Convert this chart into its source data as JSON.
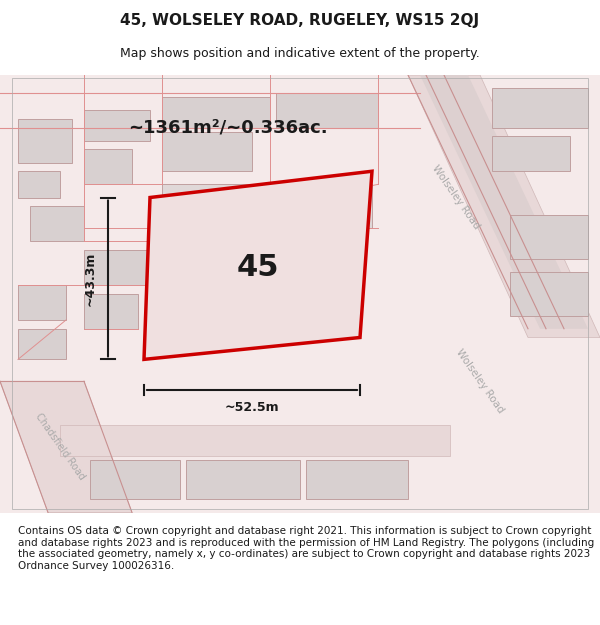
{
  "title": "45, WOLSELEY ROAD, RUGELEY, WS15 2QJ",
  "subtitle": "Map shows position and indicative extent of the property.",
  "footer": "Contains OS data © Crown copyright and database right 2021. This information is subject to Crown copyright and database rights 2023 and is reproduced with the permission of HM Land Registry. The polygons (including the associated geometry, namely x, y co-ordinates) are subject to Crown copyright and database rights 2023 Ordnance Survey 100026316.",
  "area_text": "~1361m²/~0.336ac.",
  "number_label": "45",
  "dim_width": "~52.5m",
  "dim_height": "~43.3m",
  "road_label_top": "Wolseley Road",
  "road_label_bottom": "Wolseley Road",
  "road_label_left": "Chadsfield Road",
  "bg_color": "#ffffff",
  "map_bg": "#f7f0f0",
  "road_color": "#e8d0d0",
  "plot_color": "#e8d0d0",
  "boundary_color": "#cc0000",
  "line_color": "#1a1a1a",
  "text_color": "#1a1a1a",
  "gray_color": "#c8c8c8",
  "title_fontsize": 11,
  "subtitle_fontsize": 9,
  "footer_fontsize": 7.5
}
